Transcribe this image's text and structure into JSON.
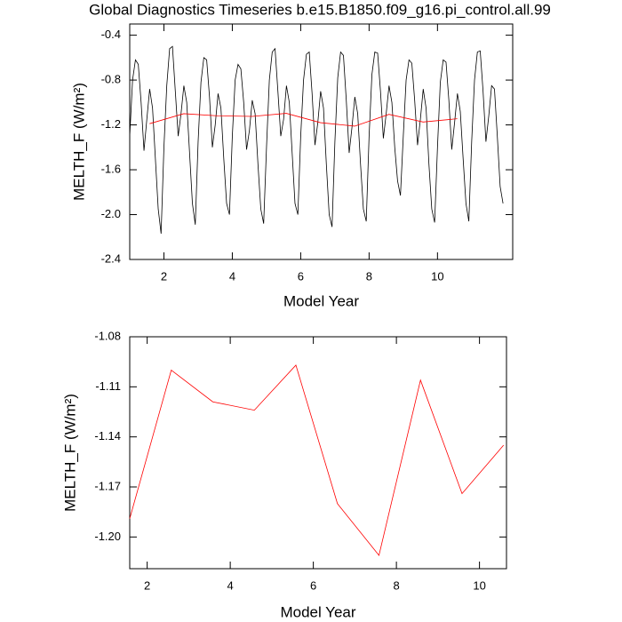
{
  "chart_data": [
    {
      "type": "line",
      "title": "Global Diagnostics Timeseries b.e15.B1850.f09_g16.pi_control.all.99",
      "xlabel": "Model Year",
      "ylabel": "MELTH_F (W/m²)",
      "xlim": [
        1,
        12.2
      ],
      "xticks": [
        2,
        4,
        6,
        8,
        10
      ],
      "ylim": [
        -2.4,
        -0.3
      ],
      "yticks": [
        -2.4,
        {
          "value": -2,
          "label": "-2.0"
        },
        -1.6,
        -1.2,
        -0.8,
        -0.4
      ],
      "series": [
        {
          "color": "#000000",
          "x": [
            1,
            1.083,
            1.167,
            1.25,
            1.333,
            1.417,
            1.5,
            1.583,
            1.667,
            1.75,
            1.833,
            1.917,
            2,
            2.083,
            2.167,
            2.25,
            2.333,
            2.417,
            2.5,
            2.583,
            2.667,
            2.75,
            2.833,
            2.917,
            3,
            3.083,
            3.167,
            3.25,
            3.333,
            3.417,
            3.5,
            3.583,
            3.667,
            3.75,
            3.833,
            3.917,
            4,
            4.083,
            4.167,
            4.25,
            4.333,
            4.417,
            4.5,
            4.583,
            4.667,
            4.75,
            4.833,
            4.917,
            5,
            5.083,
            5.167,
            5.25,
            5.333,
            5.417,
            5.5,
            5.583,
            5.667,
            5.75,
            5.833,
            5.917,
            6,
            6.083,
            6.167,
            6.25,
            6.333,
            6.417,
            6.5,
            6.583,
            6.667,
            6.75,
            6.833,
            6.917,
            7,
            7.083,
            7.167,
            7.25,
            7.333,
            7.417,
            7.5,
            7.583,
            7.667,
            7.75,
            7.833,
            7.917,
            8,
            8.083,
            8.167,
            8.25,
            8.333,
            8.417,
            8.5,
            8.583,
            8.667,
            8.75,
            8.833,
            8.917,
            9,
            9.083,
            9.167,
            9.25,
            9.333,
            9.417,
            9.5,
            9.583,
            9.667,
            9.75,
            9.833,
            9.917,
            10,
            10.083,
            10.167,
            10.25,
            10.333,
            10.417,
            10.5,
            10.583,
            10.667,
            10.75,
            10.833,
            10.917,
            11,
            11.083,
            11.167,
            11.25,
            11.333,
            11.417,
            11.5,
            11.583,
            11.667,
            11.75,
            11.833,
            11.917
          ],
          "values": [
            -1.3,
            -0.8,
            -0.62,
            -0.66,
            -1.0,
            -1.43,
            -1.15,
            -0.88,
            -1.05,
            -1.5,
            -1.95,
            -2.17,
            -1.4,
            -0.85,
            -0.52,
            -0.5,
            -0.9,
            -1.3,
            -1.1,
            -0.85,
            -1.0,
            -1.45,
            -1.9,
            -2.09,
            -1.35,
            -0.82,
            -0.6,
            -0.62,
            -0.95,
            -1.4,
            -1.2,
            -0.92,
            -1.05,
            -1.5,
            -1.9,
            -2.0,
            -1.3,
            -0.8,
            -0.66,
            -0.7,
            -1.0,
            -1.42,
            -1.25,
            -0.98,
            -1.1,
            -1.55,
            -1.95,
            -2.08,
            -1.4,
            -0.8,
            -0.55,
            -0.52,
            -0.9,
            -1.3,
            -1.15,
            -0.85,
            -1.0,
            -1.45,
            -1.9,
            -2.0,
            -1.3,
            -0.8,
            -0.57,
            -0.55,
            -0.92,
            -1.38,
            -1.18,
            -0.9,
            -1.05,
            -1.55,
            -2.0,
            -2.11,
            -1.35,
            -0.78,
            -0.55,
            -0.58,
            -0.98,
            -1.45,
            -1.22,
            -0.95,
            -1.1,
            -1.55,
            -1.95,
            -2.06,
            -1.3,
            -0.75,
            -0.55,
            -0.56,
            -0.9,
            -1.32,
            -1.1,
            -0.85,
            -1.0,
            -1.4,
            -1.7,
            -1.83,
            -1.3,
            -0.8,
            -0.62,
            -0.65,
            -0.98,
            -1.38,
            -1.15,
            -0.88,
            -1.05,
            -1.55,
            -1.95,
            -2.07,
            -1.4,
            -0.82,
            -0.62,
            -0.64,
            -0.98,
            -1.42,
            -1.18,
            -0.92,
            -1.08,
            -1.5,
            -1.9,
            -2.06,
            -1.35,
            -0.8,
            -0.55,
            -0.54,
            -0.9,
            -1.35,
            -1.12,
            -0.85,
            -0.88,
            -1.3,
            -1.75,
            -1.9
          ]
        },
        {
          "color": "#ff0000",
          "x": [
            1.58,
            2.58,
            3.58,
            4.58,
            5.58,
            6.58,
            7.58,
            8.58,
            9.58,
            10.58
          ],
          "values": [
            -1.189,
            -1.1,
            -1.119,
            -1.124,
            -1.097,
            -1.18,
            -1.211,
            -1.106,
            -1.174,
            -1.145
          ]
        }
      ]
    },
    {
      "type": "line",
      "xlabel": "Model Year",
      "ylabel": "MELTH_F (W/m²)",
      "xlim": [
        1.58,
        10.65
      ],
      "xticks": [
        2,
        4,
        6,
        8,
        10
      ],
      "ylim": [
        -1.219,
        -1.08
      ],
      "yticks": [
        {
          "value": -1.2,
          "label": "-1.20"
        },
        -1.17,
        -1.14,
        -1.11,
        -1.08
      ],
      "series": [
        {
          "color": "#ff0000",
          "x": [
            1.58,
            2.58,
            3.58,
            4.58,
            5.58,
            6.58,
            7.58,
            8.58,
            9.58,
            10.58
          ],
          "values": [
            -1.189,
            -1.1,
            -1.119,
            -1.124,
            -1.097,
            -1.18,
            -1.211,
            -1.106,
            -1.174,
            -1.145
          ]
        }
      ]
    }
  ]
}
